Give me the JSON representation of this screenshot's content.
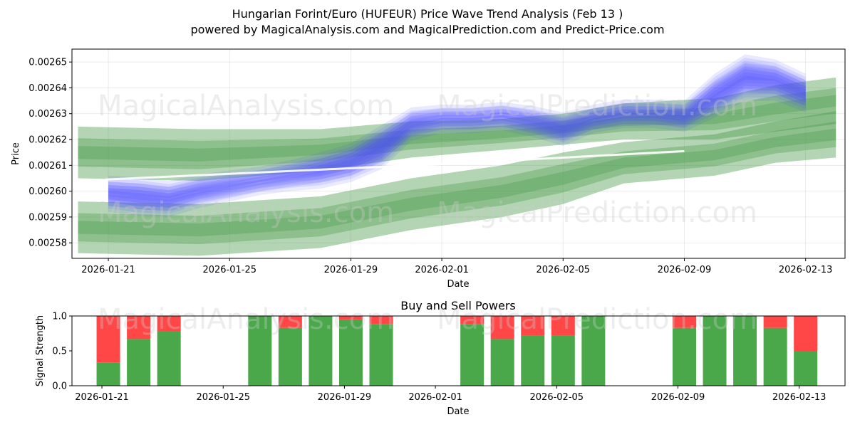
{
  "chart_data": [
    {
      "type": "area",
      "title": "Hungarian Forint/Euro (HUFEUR) Price Wave Trend Analysis (Feb 13 )",
      "subtitle": "powered by MagicalAnalysis.com and MagicalPrediction.com and Predict-Price.com",
      "xlabel": "Date",
      "ylabel": "Price",
      "x_ticks": [
        "2026-01-21",
        "2026-01-25",
        "2026-01-29",
        "2026-02-01",
        "2026-02-05",
        "2026-02-09",
        "2026-02-13"
      ],
      "y_ticks": [
        "0.00258",
        "0.00259",
        "0.00260",
        "0.00261",
        "0.00262",
        "0.00263",
        "0.00264",
        "0.00265"
      ],
      "ylim": [
        0.002574,
        0.002655
      ],
      "x_range_days": [
        -1.2,
        24.3
      ],
      "grid": true,
      "watermarks": [
        "MagicalAnalysis.com",
        "MagicalPrediction.com"
      ],
      "series": [
        {
          "name": "price wave (blue)",
          "color": "#4a4aff",
          "x": [
            0,
            1,
            2,
            3,
            4,
            5,
            6,
            7,
            8,
            9,
            10,
            11,
            12,
            13,
            14,
            15,
            16,
            17,
            18,
            19,
            20,
            21,
            22,
            23
          ],
          "values": [
            0.002599,
            0.002598,
            0.002597,
            0.0026,
            0.002602,
            0.002604,
            0.002606,
            0.002608,
            0.002611,
            0.002617,
            0.002626,
            0.002628,
            0.002628,
            0.002629,
            0.002627,
            0.002624,
            0.002628,
            0.00263,
            0.00263,
            0.002629,
            0.002637,
            0.002644,
            0.002643,
            0.002638
          ],
          "band": [
            4.5e-06,
            5e-06,
            4.5e-06,
            4e-06,
            3.5e-06,
            3e-06,
            3.5e-06,
            4.5e-06,
            5e-06,
            6e-06,
            4e-06,
            3e-06,
            3e-06,
            3e-06,
            3.5e-06,
            4e-06,
            3e-06,
            3e-06,
            3e-06,
            3.5e-06,
            6e-06,
            6.5e-06,
            5.5e-06,
            5e-06
          ]
        },
        {
          "name": "trend lower (green)",
          "color": "#4a9a4a",
          "x": [
            -1,
            3,
            7,
            10,
            13,
            15,
            17,
            20,
            22,
            24
          ],
          "values": [
            0.002586,
            0.002585,
            0.002588,
            0.002595,
            0.0026,
            0.002605,
            0.002611,
            0.002614,
            0.002619,
            0.002622
          ],
          "band": [
            1e-05,
            1e-05,
            1e-05,
            1e-05,
            1e-05,
            1e-05,
            8e-06,
            8e-06,
            8e-06,
            9e-06
          ]
        },
        {
          "name": "trend upper (green)",
          "color": "#4a9a4a",
          "x": [
            -1,
            3,
            7,
            10,
            13,
            15,
            17,
            20,
            22,
            24
          ],
          "values": [
            0.002615,
            0.002614,
            0.002616,
            0.00262,
            0.002622,
            0.002624,
            0.002627,
            0.002628,
            0.002632,
            0.002635
          ],
          "band": [
            1e-05,
            1e-05,
            8e-06,
            7e-06,
            6e-06,
            6e-06,
            7e-06,
            8e-06,
            9e-06,
            9e-06
          ]
        }
      ]
    },
    {
      "type": "bar",
      "title": "Buy and Sell Powers",
      "xlabel": "Date",
      "ylabel": "Signal Strength",
      "x_ticks": [
        "2026-01-21",
        "2026-01-25",
        "2026-01-29",
        "2026-02-01",
        "2026-02-05",
        "2026-02-09",
        "2026-02-13"
      ],
      "y_ticks": [
        "0.0",
        "0.5",
        "1.0"
      ],
      "ylim": [
        0,
        1
      ],
      "buy_color": "#4aa84a",
      "sell_color": "#ff4747",
      "days": [
        0,
        1,
        2,
        5,
        6,
        7,
        8,
        9,
        12,
        13,
        14,
        15,
        16,
        19,
        20,
        21,
        22,
        23
      ],
      "buy": [
        0.33,
        0.67,
        0.78,
        1.0,
        0.83,
        1.0,
        0.95,
        0.88,
        0.88,
        0.67,
        0.72,
        0.72,
        1.0,
        0.83,
        1.0,
        1.0,
        0.83,
        0.5
      ],
      "sell": [
        0.67,
        0.33,
        0.22,
        0.0,
        0.17,
        0.0,
        0.05,
        0.12,
        0.12,
        0.33,
        0.28,
        0.28,
        0.0,
        0.17,
        0.0,
        0.0,
        0.17,
        0.5
      ]
    }
  ]
}
